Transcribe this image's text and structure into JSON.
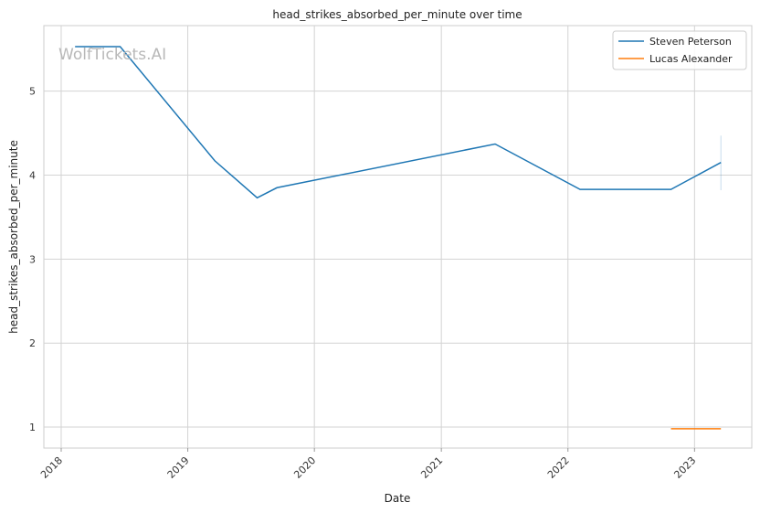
{
  "watermark": "WolfTickets.AI",
  "chart_data": {
    "type": "line",
    "title": "head_strikes_absorbed_per_minute over time",
    "xlabel": "Date",
    "ylabel": "head_strikes_absorbed_per_minute",
    "x_tick_labels": [
      "2018",
      "2019",
      "2020",
      "2021",
      "2022",
      "2023"
    ],
    "y_tick_labels": [
      "1",
      "2",
      "3",
      "4",
      "5"
    ],
    "xlim": [
      "2017-11-12",
      "2023-06-15"
    ],
    "ylim": [
      0.75,
      5.78
    ],
    "grid": true,
    "legend_position": "top-right",
    "series": [
      {
        "name": "Steven Peterson",
        "color": "#1f77b4",
        "x": [
          "2018-02-10",
          "2018-06-20",
          "2019-03-20",
          "2019-07-20",
          "2019-09-15",
          "2021-06-05",
          "2022-02-05",
          "2022-10-25",
          "2023-03-18"
        ],
        "y": [
          5.53,
          5.53,
          4.17,
          3.73,
          3.85,
          4.37,
          3.83,
          3.83,
          4.15
        ],
        "error_bar": {
          "x": "2023-03-18",
          "low": 3.82,
          "high": 4.47
        }
      },
      {
        "name": "Lucas Alexander",
        "color": "#ff7f0e",
        "x": [
          "2022-10-25",
          "2023-03-18"
        ],
        "y": [
          0.98,
          0.98
        ]
      }
    ]
  }
}
